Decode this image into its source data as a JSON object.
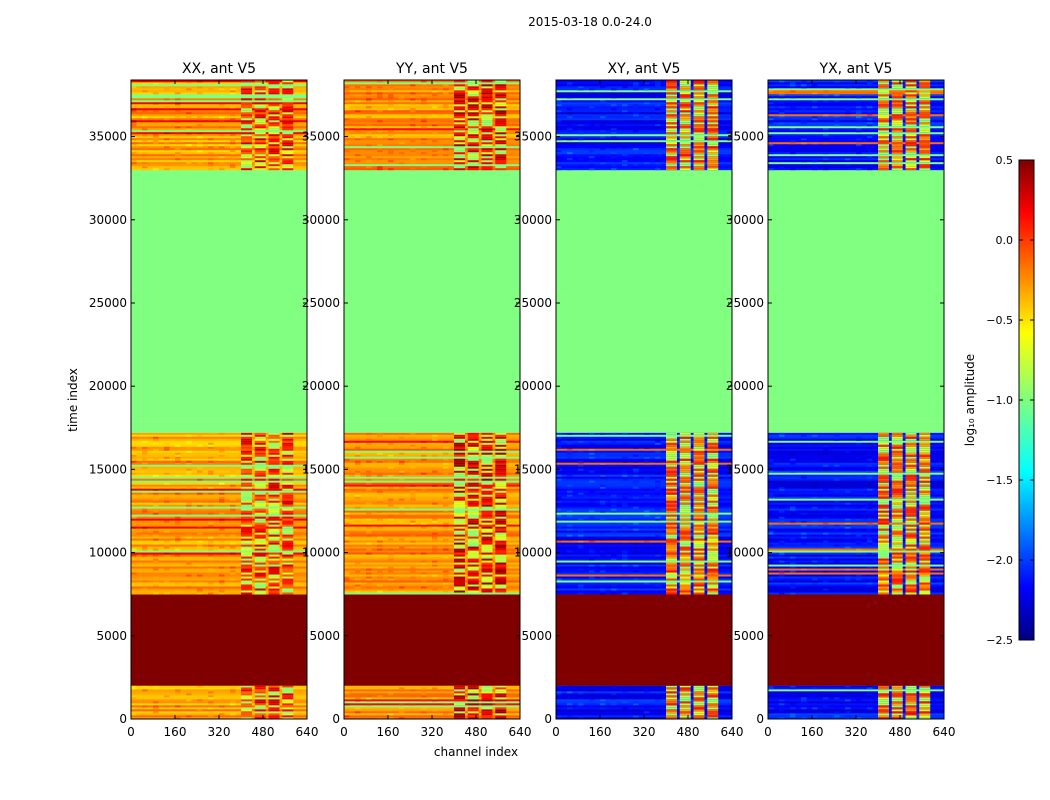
{
  "chart_data": {
    "type": "heatmap",
    "title": "2015-03-18 0.0-24.0",
    "xlabel": "channel index",
    "ylabel": "time index",
    "xlim": [
      0,
      640
    ],
    "ylim": [
      0,
      38400
    ],
    "x_ticks": [
      0,
      160,
      320,
      480,
      640
    ],
    "y_ticks": [
      0,
      5000,
      10000,
      15000,
      20000,
      25000,
      30000,
      35000
    ],
    "y_tick_labels": [
      "0",
      "5000",
      "10000",
      "15000",
      "20000",
      "25000",
      "30000",
      "35000"
    ],
    "colorbar": {
      "label": "log₁₀ amplitude",
      "range": [
        -2.5,
        0.5
      ],
      "ticks": [
        0.5,
        0.0,
        -0.5,
        -1.0,
        -1.5,
        -2.0,
        -2.5
      ],
      "tick_labels": [
        "0.5",
        "0.0",
        "−0.5",
        "−1.0",
        "−1.5",
        "−2.0",
        "−2.5"
      ],
      "colormap": "jet"
    },
    "panels": [
      {
        "title": "XX, ant V5",
        "base_value": -0.35,
        "hot_value": 0.3,
        "band_value": 0.15
      },
      {
        "title": "YY, ant V5",
        "base_value": -0.3,
        "hot_value": 0.45,
        "band_value": 0.1
      },
      {
        "title": "XY, ant V5",
        "base_value": -2.1,
        "hot_value": 0.1,
        "band_value": -0.2
      },
      {
        "title": "YX, ant V5",
        "base_value": -2.1,
        "hot_value": 0.1,
        "band_value": -0.2
      }
    ],
    "time_segments": [
      {
        "from": 0,
        "to": 2000,
        "kind": "data"
      },
      {
        "from": 2000,
        "to": 7500,
        "kind": "saturated",
        "value": 0.5
      },
      {
        "from": 7500,
        "to": 17200,
        "kind": "data"
      },
      {
        "from": 17200,
        "to": 17900,
        "kind": "flagged",
        "value": -1.0
      },
      {
        "from": 17900,
        "to": 33000,
        "kind": "flagged",
        "value": -1.0
      },
      {
        "from": 33000,
        "to": 38400,
        "kind": "data"
      }
    ],
    "hot_channels": [
      [
        400,
        440
      ],
      [
        450,
        490
      ],
      [
        500,
        540
      ],
      [
        550,
        590
      ]
    ]
  }
}
